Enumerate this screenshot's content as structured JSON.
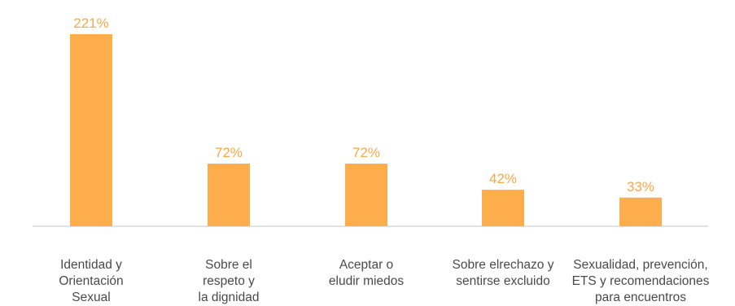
{
  "chart_data": {
    "type": "bar",
    "categories": [
      [
        "Identidad y",
        "Orientación",
        "Sexual"
      ],
      [
        "Sobre el",
        "respeto y",
        "la dignidad"
      ],
      [
        "Aceptar o",
        "eludir miedos"
      ],
      [
        "Sobre elrechazo y",
        "sentirse excluido"
      ],
      [
        "Sexualidad, prevención,",
        "ETS y recomendaciones",
        "para encuentros"
      ]
    ],
    "values": [
      221,
      72,
      72,
      42,
      33
    ],
    "data_labels": [
      "221%",
      "72%",
      "72%",
      "42%",
      "33%"
    ],
    "title": "",
    "xlabel": "",
    "ylabel": "",
    "ylim": [
      0,
      221
    ],
    "grid": false,
    "legend": "none"
  },
  "colors": {
    "bar": "#FEAD4C",
    "value_label": "#F7A84A",
    "category_label": "#4a4a4a",
    "axis": "#d9d9d9"
  }
}
